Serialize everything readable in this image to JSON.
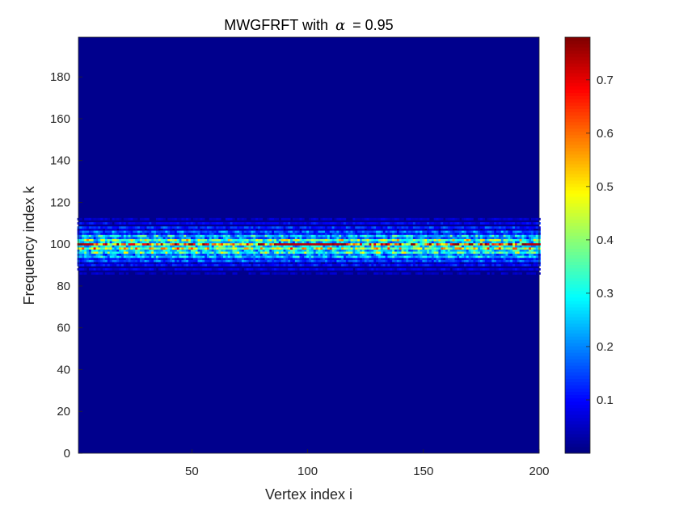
{
  "chart_data": {
    "type": "heatmap",
    "title": "MWGFRFT with",
    "title_symbol": "α",
    "title_value": "= 0.95",
    "xlabel": "Vertex index i",
    "ylabel": "Frequency index k",
    "x_ticks": [
      "50",
      "100",
      "150",
      "200"
    ],
    "y_ticks": [
      "0",
      "20",
      "40",
      "60",
      "80",
      "100",
      "120",
      "140",
      "160",
      "180"
    ],
    "colorbar_ticks": [
      "0.1",
      "0.2",
      "0.3",
      "0.4",
      "0.5",
      "0.6",
      "0.7"
    ],
    "xlim": [
      1,
      200
    ],
    "ylim": [
      0,
      199
    ],
    "clim": [
      0,
      0.78
    ],
    "colormap": "jet",
    "grid": false,
    "band": {
      "k_center": 99,
      "k_range": [
        85,
        113
      ],
      "peak_rows": [
        {
          "k": 100,
          "level": 0.72
        },
        {
          "k": 98,
          "level": 0.55
        },
        {
          "k": 102,
          "level": 0.48
        },
        {
          "k": 96,
          "level": 0.42
        },
        {
          "k": 104,
          "level": 0.33
        },
        {
          "k": 94,
          "level": 0.3
        },
        {
          "k": 106,
          "level": 0.22
        },
        {
          "k": 92,
          "level": 0.2
        },
        {
          "k": 108,
          "level": 0.16
        },
        {
          "k": 90,
          "level": 0.13
        },
        {
          "k": 110,
          "level": 0.11
        },
        {
          "k": 88,
          "level": 0.09
        },
        {
          "k": 112,
          "level": 0.07
        },
        {
          "k": 86,
          "level": 0.06
        }
      ],
      "max_value": 0.77,
      "background_value": 0.01
    }
  }
}
